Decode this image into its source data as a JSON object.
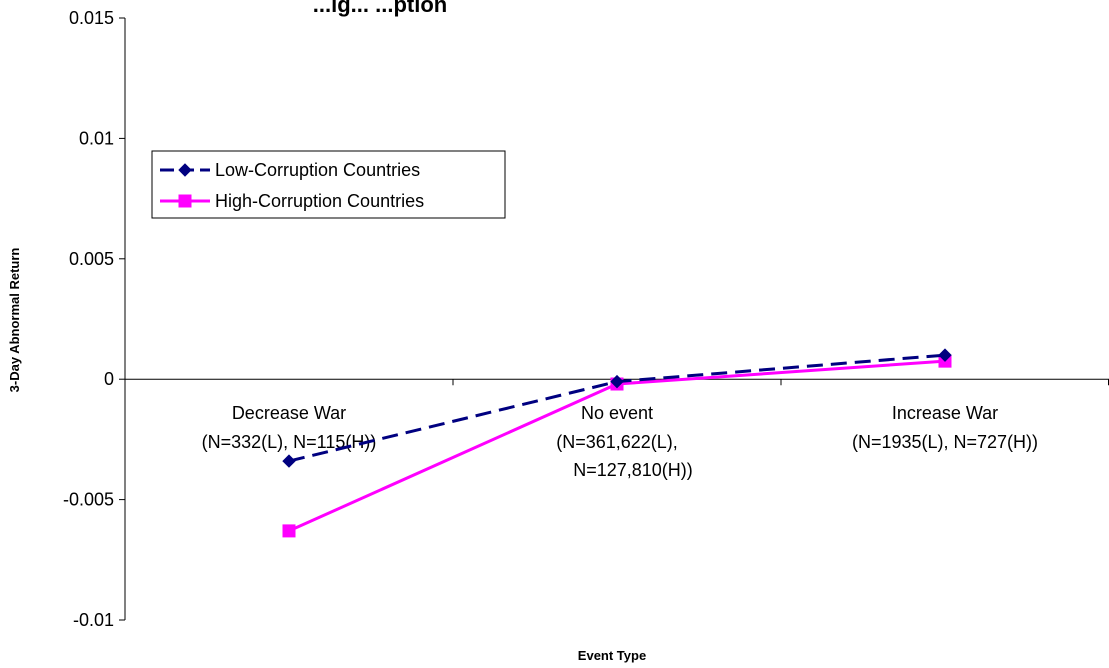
{
  "chart_data": {
    "type": "line",
    "title": "...ig... ...ption",
    "xlabel": "Event Type",
    "ylabel": "3-Day Abnormal Return",
    "ylim": [
      -0.01,
      0.015
    ],
    "yticks": [
      "0.015",
      "0.01",
      "0.005",
      "0",
      "-0.005",
      "-0.01"
    ],
    "categories": [
      [
        "Decrease War",
        "(N=332(L), N=115(H))"
      ],
      [
        "No event",
        "(N=361,622(L),",
        "N=127,810(H))"
      ],
      [
        "Increase War",
        "(N=1935(L), N=727(H))"
      ]
    ],
    "series": [
      {
        "name": "Low-Corruption Countries",
        "values": [
          -0.0034,
          -0.0001,
          0.001
        ],
        "color": "#000080",
        "marker": "diamond",
        "dash": "dashed"
      },
      {
        "name": "High-Corruption Countries",
        "values": [
          -0.0063,
          -0.0002,
          0.00075
        ],
        "color": "#ff00ff",
        "marker": "square",
        "dash": "solid"
      }
    ],
    "legend": "top-left",
    "grid": false
  }
}
